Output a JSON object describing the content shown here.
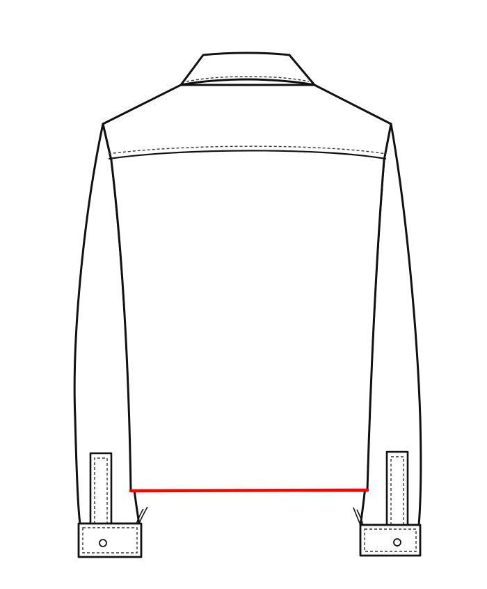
{
  "garment": {
    "view": "back",
    "parts": [
      "collar",
      "back-yoke",
      "left-sleeve",
      "right-sleeve",
      "left-cuff",
      "right-cuff",
      "left-sleeve-placket",
      "right-sleeve-placket"
    ]
  },
  "measurement": {
    "name": "hem-width-line",
    "color": "#ff0000"
  },
  "colors": {
    "outline": "#111111",
    "stitching": "#333333",
    "fill": "#ffffff",
    "background": "#ffffff"
  }
}
